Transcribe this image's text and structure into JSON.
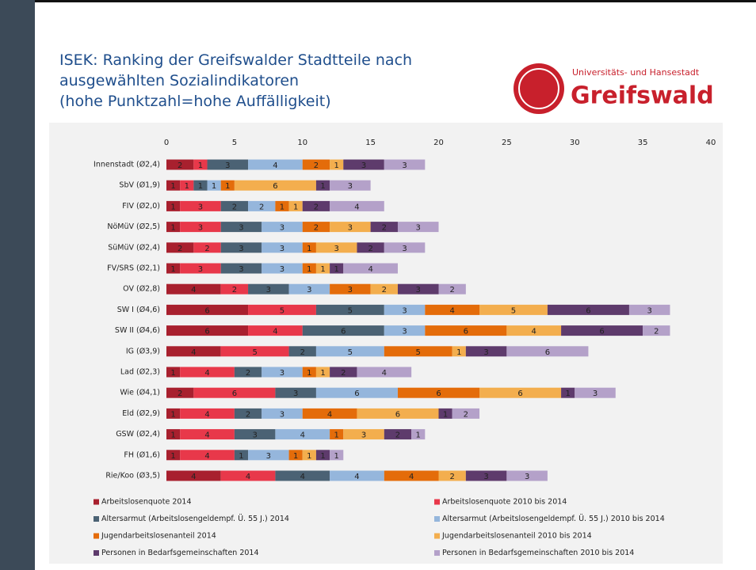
{
  "logo": {
    "line1": "Universitäts- und Hansestadt",
    "line2": "Greifswald"
  },
  "chart_data": {
    "type": "stacked-bar-horizontal",
    "title": [
      "ISEK: Ranking der Greifswalder Stadtteile nach",
      "ausgewählten Sozialindikatoren",
      "(hohe Punktzahl=hohe Auffälligkeit)"
    ],
    "categories": [
      "Innenstadt (Ø2,4)",
      "SbV (Ø1,9)",
      "FIV (Ø2,0)",
      "NöMüV (Ø2,5)",
      "SüMüV (Ø2,4)",
      "FV/SRS (Ø2,1)",
      "OV (Ø2,8)",
      "SW I (Ø4,6)",
      "SW II (Ø4,6)",
      "IG (Ø3,9)",
      "Lad (Ø2,3)",
      "Wie (Ø4,1)",
      "Eld (Ø2,9)",
      "GSW (Ø2,4)",
      "FH (Ø1,6)",
      "Rie/Koo (Ø3,5)"
    ],
    "series": [
      {
        "name": "Arbeitslosenquote 2014",
        "color": "#a8202e",
        "values": [
          2,
          1,
          1,
          1,
          2,
          1,
          4,
          6,
          6,
          4,
          1,
          2,
          1,
          1,
          1,
          4
        ]
      },
      {
        "name": "Arbeitslosenquote 2010 bis 2014",
        "color": "#e8384a",
        "values": [
          1,
          1,
          3,
          3,
          2,
          3,
          2,
          5,
          4,
          5,
          4,
          6,
          4,
          4,
          4,
          4
        ]
      },
      {
        "name": "Altersarmut (Arbeitslosengeldempf. Ü. 55 J.) 2014",
        "color": "#4b6274",
        "values": [
          3,
          1,
          2,
          3,
          3,
          3,
          3,
          5,
          6,
          2,
          2,
          3,
          2,
          3,
          1,
          4
        ]
      },
      {
        "name": "Altersarmut (Arbeitslosengeldempf. Ü. 55 J.) 2010 bis 2014",
        "color": "#95b6dc",
        "values": [
          4,
          1,
          2,
          3,
          3,
          3,
          3,
          3,
          3,
          5,
          3,
          6,
          3,
          4,
          3,
          4
        ]
      },
      {
        "name": "Jugendarbeitslosenanteil 2014",
        "color": "#e46c0a",
        "values": [
          2,
          1,
          1,
          2,
          1,
          1,
          3,
          4,
          6,
          5,
          1,
          6,
          4,
          1,
          1,
          4
        ]
      },
      {
        "name": "Jugendarbeitslosenanteil 2010 bis 2014",
        "color": "#f3ae4e",
        "values": [
          1,
          6,
          1,
          3,
          3,
          1,
          2,
          5,
          4,
          1,
          1,
          6,
          6,
          3,
          1,
          2
        ]
      },
      {
        "name": "Personen in Bedarfsgemeinschaften 2014",
        "color": "#5e3b6c",
        "values": [
          3,
          1,
          2,
          2,
          2,
          1,
          3,
          6,
          6,
          3,
          2,
          1,
          1,
          2,
          1,
          3
        ]
      },
      {
        "name": "Personen in Bedarfsgemeinschaften 2010 bis 2014",
        "color": "#b4a1c9",
        "values": [
          3,
          3,
          4,
          3,
          3,
          4,
          2,
          3,
          2,
          6,
          4,
          3,
          2,
          1,
          1,
          3
        ]
      }
    ],
    "xlim": [
      0,
      40
    ],
    "xticks": [
      0,
      5,
      10,
      15,
      20,
      25,
      30,
      35,
      40
    ],
    "grid": false
  }
}
